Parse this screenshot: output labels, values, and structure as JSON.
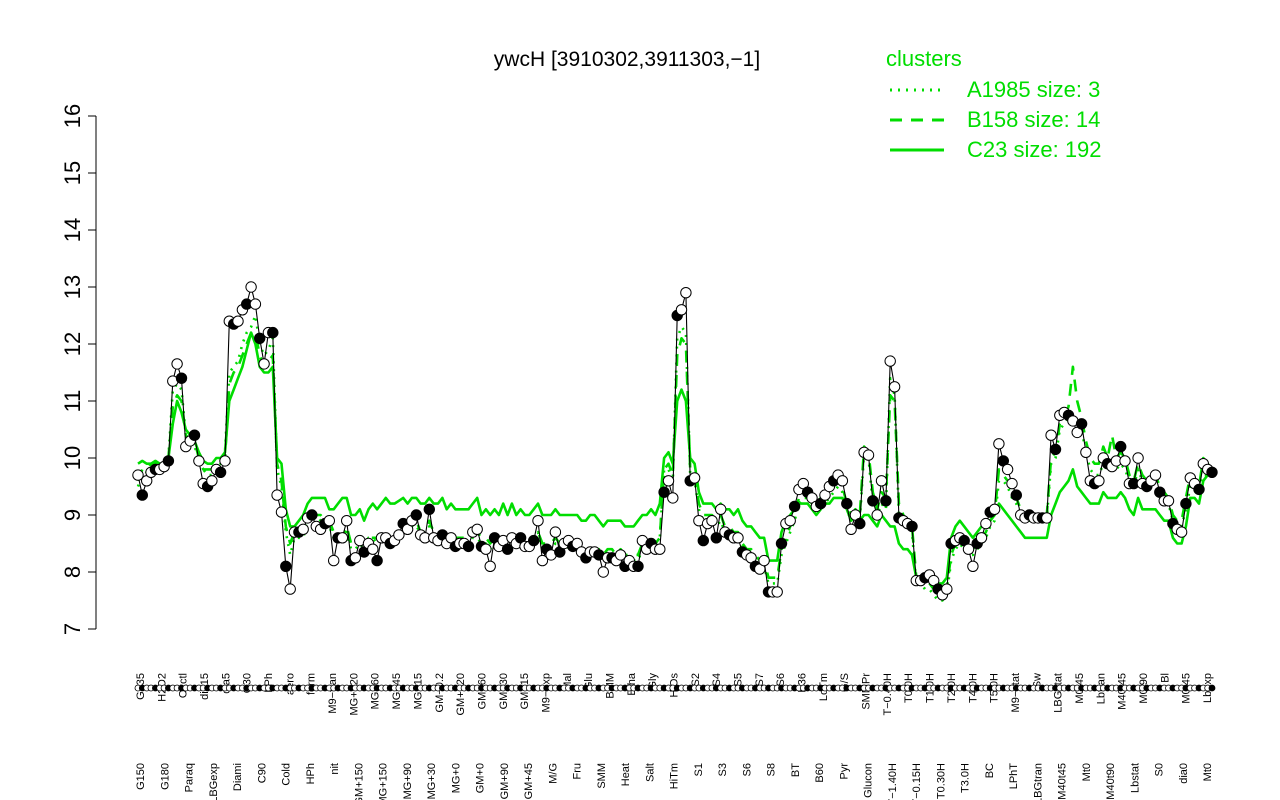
{
  "chart_data": {
    "type": "line",
    "title": "ywcH [3910302,3911303,−1]",
    "xlabel": "",
    "ylabel": "",
    "ylim": [
      7,
      16
    ],
    "yticks": [
      7,
      8,
      9,
      10,
      11,
      12,
      13,
      14,
      15,
      16
    ],
    "grid": false,
    "legend_placement": "top-right",
    "legend": {
      "title": "clusters",
      "entries": [
        {
          "label": "A1985 size: 3",
          "style": "dotted"
        },
        {
          "label": "B158 size: 14",
          "style": "dashed"
        },
        {
          "label": "C23 size: 192",
          "style": "solid"
        }
      ]
    },
    "colors": {
      "cluster_lines": "#00dd00",
      "points": "#000000",
      "text": "#000000"
    },
    "x_tick_labels_top": [
      "G135",
      "H2O2",
      "Oxctl",
      "dia15",
      "dia5",
      "C30",
      "LPh",
      "aero",
      "ferm",
      "M9−tran",
      "MG+120",
      "MG+60",
      "MG+45",
      "MG+15",
      "GM−0.2",
      "GM+120",
      "GM+60",
      "GM+30",
      "GM+15",
      "M9−exp",
      "Mal",
      "Glu",
      "BMM",
      "Etha",
      "Gly",
      "HiOs",
      "S2",
      "S4",
      "S5",
      "S7",
      "S6",
      "B36",
      "LoTm",
      "G/S",
      "SMMPr",
      "T−0.40H",
      "T0.0H",
      "T1.0H",
      "T2.0H",
      "T4.0H",
      "T5.0H",
      "M9−stat",
      "Sw",
      "LBGstat",
      "M0t45",
      "Lbtran",
      "M40t45",
      "M0t90",
      "Bl",
      "M0t45",
      "Lbexp"
    ],
    "x_tick_labels_bottom": [
      "G150",
      "G180",
      "Paraq",
      "LBGexp",
      "Diami",
      "C90",
      "Cold",
      "HPh",
      "nit",
      "GM+150",
      "MG+150",
      "MG+90",
      "MG+30",
      "MG+0",
      "GM+0",
      "GM+90",
      "GM+45",
      "M/G",
      "Fru",
      "SMM",
      "Heat",
      "Salt",
      "HiTm",
      "S1",
      "S3",
      "S6",
      "S8",
      "BT",
      "B60",
      "Pyr",
      "Glucon",
      "T−1.40H",
      "T−0.15H",
      "T0.30H",
      "T3.0H",
      "BC",
      "LPhT",
      "LBGtran",
      "M40t45",
      "Mt0",
      "M40t90",
      "Lbstat",
      "S0",
      "dia0",
      "Mt0"
    ],
    "series": [
      {
        "kind": "expression",
        "values": [
          9.7,
          9.35,
          9.6,
          9.75,
          9.8,
          9.8,
          9.85,
          9.95,
          11.35,
          11.65,
          11.4,
          10.2,
          10.3,
          10.4,
          9.95,
          9.55,
          9.5,
          9.6,
          9.8,
          9.75,
          9.95,
          12.4,
          12.35,
          12.4,
          12.6,
          12.7,
          13.0,
          12.7,
          12.1,
          11.65,
          12.2,
          12.2,
          9.35,
          9.05,
          8.1,
          7.7,
          8.7,
          8.7,
          8.75,
          8.95,
          9.0,
          8.8,
          8.75,
          8.85,
          8.9,
          8.2,
          8.6,
          8.6,
          8.9,
          8.2,
          8.25,
          8.55,
          8.35,
          8.5,
          8.4,
          8.2,
          8.6,
          8.6,
          8.5,
          8.55,
          8.65,
          8.85,
          8.75,
          8.9,
          9.0,
          8.65,
          8.6,
          9.1,
          8.6,
          8.55,
          8.65,
          8.5,
          8.6,
          8.45,
          8.5,
          8.5,
          8.45,
          8.7,
          8.75,
          8.45,
          8.4,
          8.1,
          8.6,
          8.45,
          8.55,
          8.4,
          8.6,
          8.5,
          8.6,
          8.45,
          8.45,
          8.55,
          8.9,
          8.2,
          8.4,
          8.3,
          8.7,
          8.35,
          8.5,
          8.55,
          8.45,
          8.5,
          8.35,
          8.25,
          8.35,
          8.35,
          8.3,
          8.0,
          8.25,
          8.25,
          8.2,
          8.3,
          8.1,
          8.2,
          8.1,
          8.1,
          8.55,
          8.4,
          8.5,
          8.4,
          8.4,
          9.4,
          9.6,
          9.3,
          12.5,
          12.6,
          12.9,
          9.6,
          9.65,
          8.9,
          8.55,
          8.85,
          8.9,
          8.6,
          9.1,
          8.7,
          8.65,
          8.6,
          8.6,
          8.35,
          8.3,
          8.25,
          8.1,
          8.05,
          8.2,
          7.65,
          7.65,
          7.65,
          8.5,
          8.85,
          8.9,
          9.15,
          9.45,
          9.55,
          9.4,
          9.3,
          9.15,
          9.2,
          9.35,
          9.5,
          9.6,
          9.7,
          9.6,
          9.2,
          8.75,
          9.0,
          8.85,
          10.1,
          10.05,
          9.25,
          9.0,
          9.6,
          9.25,
          11.7,
          11.25,
          8.95,
          8.9,
          8.85,
          8.8,
          7.85,
          7.85,
          7.9,
          7.95,
          7.85,
          7.7,
          7.6,
          7.7,
          8.5,
          8.55,
          8.6,
          8.55,
          8.4,
          8.1,
          8.5,
          8.6,
          8.85,
          9.05,
          9.1,
          10.25,
          9.95,
          9.8,
          9.55,
          9.35,
          9.0,
          8.95,
          9.0,
          8.95,
          8.95,
          8.95,
          8.95,
          10.4,
          10.15,
          10.75,
          10.8,
          10.75,
          10.65,
          10.45,
          10.6,
          10.1,
          9.6,
          9.55,
          9.6,
          10.0,
          9.9,
          9.85,
          9.95,
          10.2,
          9.95,
          9.55,
          9.55,
          10.0,
          9.55,
          9.5,
          9.6,
          9.7,
          9.4,
          9.25,
          9.25,
          8.85,
          8.75,
          8.7,
          9.2,
          9.65,
          9.55,
          9.45,
          9.9,
          9.8,
          9.75
        ]
      },
      {
        "name": "A1985 size: 3",
        "values": [
          9.5,
          9.7,
          9.75,
          9.8,
          9.9,
          9.85,
          9.9,
          10.0,
          11.2,
          11.3,
          11.2,
          10.4,
          10.3,
          10.2,
          10.0,
          9.8,
          9.7,
          9.7,
          9.85,
          9.9,
          10.1,
          11.5,
          11.6,
          11.7,
          12.0,
          12.2,
          12.3,
          12.5,
          12.0,
          11.8,
          11.9,
          12.1,
          9.8,
          9.5,
          8.7,
          8.3,
          8.6,
          8.6,
          8.6,
          8.9,
          9.0,
          9.0,
          8.9,
          8.8,
          8.8,
          8.6,
          8.6,
          8.5,
          8.7,
          8.4,
          8.4,
          8.5,
          8.4,
          8.6,
          8.6,
          8.5,
          8.6,
          8.6,
          8.55,
          8.6,
          8.6,
          8.7,
          8.7,
          8.8,
          8.8,
          8.7,
          8.6,
          8.8,
          8.6,
          8.55,
          8.6,
          8.5,
          8.6,
          8.5,
          8.5,
          8.5,
          8.5,
          8.6,
          8.6,
          8.5,
          8.5,
          8.4,
          8.5,
          8.5,
          8.55,
          8.5,
          8.55,
          8.5,
          8.55,
          8.5,
          8.5,
          8.5,
          8.7,
          8.4,
          8.4,
          8.4,
          8.5,
          8.4,
          8.4,
          8.45,
          8.45,
          8.4,
          8.35,
          8.3,
          8.35,
          8.35,
          8.3,
          8.2,
          8.3,
          8.3,
          8.3,
          8.3,
          8.2,
          8.2,
          8.2,
          8.2,
          8.4,
          8.4,
          8.45,
          8.5,
          8.6,
          9.8,
          9.8,
          9.6,
          12.1,
          12.3,
          12.2,
          9.7,
          9.6,
          9.1,
          8.9,
          8.9,
          8.9,
          8.8,
          8.9,
          8.7,
          8.7,
          8.6,
          8.6,
          8.4,
          8.3,
          8.3,
          8.2,
          8.1,
          8.1,
          7.8,
          7.8,
          7.8,
          8.3,
          8.5,
          8.7,
          8.9,
          9.2,
          9.3,
          9.3,
          9.2,
          9.1,
          9.2,
          9.2,
          9.3,
          9.4,
          9.5,
          9.4,
          9.1,
          8.9,
          9.0,
          8.9,
          10.1,
          10.0,
          9.2,
          9.0,
          9.2,
          9.1,
          11.4,
          11.1,
          9.0,
          8.8,
          8.8,
          8.7,
          7.8,
          7.8,
          7.7,
          7.7,
          7.6,
          7.5,
          7.5,
          7.6,
          8.2,
          8.4,
          8.5,
          8.4,
          8.3,
          8.3,
          8.4,
          8.5,
          8.6,
          8.8,
          8.9,
          9.6,
          9.6,
          9.5,
          9.3,
          9.2,
          9.0,
          8.9,
          8.9,
          8.9,
          8.9,
          8.9,
          8.95,
          9.9,
          10.0,
          10.5,
          10.6,
          10.7,
          10.8,
          10.6,
          10.5,
          10.1,
          9.8,
          9.7,
          9.7,
          9.9,
          9.8,
          9.8,
          9.8,
          9.9,
          9.8,
          9.6,
          9.5,
          9.8,
          9.6,
          9.5,
          9.5,
          9.5,
          9.4,
          9.3,
          9.2,
          8.9,
          8.8,
          8.8,
          9.1,
          9.5,
          9.5,
          9.4,
          9.7,
          9.7,
          9.7
        ]
      },
      {
        "name": "B158 size: 14",
        "values": [
          9.6,
          9.8,
          9.8,
          9.9,
          9.9,
          9.9,
          9.9,
          10.0,
          10.9,
          11.1,
          11.0,
          10.4,
          10.3,
          10.3,
          10.0,
          9.8,
          9.8,
          9.8,
          9.9,
          9.9,
          10.0,
          11.3,
          11.5,
          11.6,
          11.8,
          12.0,
          12.2,
          12.2,
          11.8,
          11.6,
          11.7,
          11.8,
          9.9,
          9.6,
          8.8,
          8.5,
          8.7,
          8.7,
          8.7,
          8.9,
          9.0,
          9.0,
          9.0,
          8.9,
          8.9,
          8.7,
          8.7,
          8.6,
          8.8,
          8.5,
          8.5,
          8.6,
          8.5,
          8.6,
          8.6,
          8.6,
          8.6,
          8.7,
          8.6,
          8.6,
          8.7,
          8.8,
          8.8,
          8.8,
          8.9,
          8.7,
          8.7,
          8.9,
          8.7,
          8.6,
          8.7,
          8.6,
          8.6,
          8.6,
          8.6,
          8.6,
          8.6,
          8.7,
          8.7,
          8.6,
          8.6,
          8.5,
          8.6,
          8.5,
          8.6,
          8.5,
          8.6,
          8.5,
          8.6,
          8.5,
          8.5,
          8.6,
          8.7,
          8.5,
          8.5,
          8.5,
          8.6,
          8.5,
          8.5,
          8.5,
          8.5,
          8.5,
          8.4,
          8.4,
          8.4,
          8.4,
          8.4,
          8.3,
          8.4,
          8.4,
          8.3,
          8.4,
          8.3,
          8.3,
          8.3,
          8.3,
          8.5,
          8.5,
          8.5,
          8.5,
          8.6,
          9.8,
          9.9,
          9.7,
          11.8,
          12.1,
          12.0,
          9.8,
          9.7,
          9.2,
          9.0,
          9.0,
          9.0,
          8.9,
          9.0,
          8.8,
          8.8,
          8.7,
          8.7,
          8.5,
          8.4,
          8.4,
          8.3,
          8.2,
          8.2,
          7.9,
          7.9,
          7.9,
          8.4,
          8.6,
          8.8,
          9.0,
          9.3,
          9.4,
          9.4,
          9.3,
          9.2,
          9.3,
          9.3,
          9.4,
          9.5,
          9.6,
          9.5,
          9.2,
          9.0,
          9.1,
          9.0,
          10.2,
          10.1,
          9.4,
          9.1,
          9.4,
          9.3,
          11.1,
          11.0,
          9.2,
          9.0,
          8.9,
          8.8,
          7.9,
          7.9,
          7.8,
          7.8,
          7.7,
          7.6,
          7.6,
          7.7,
          8.3,
          8.5,
          8.5,
          8.5,
          8.4,
          8.4,
          8.5,
          8.6,
          8.7,
          8.9,
          9.0,
          9.8,
          9.7,
          9.6,
          9.4,
          9.3,
          9.1,
          9.0,
          9.0,
          9.0,
          9.0,
          9.0,
          9.0,
          10.0,
          10.1,
          10.6,
          10.7,
          10.9,
          11.6,
          11.0,
          10.7,
          10.3,
          10.0,
          9.9,
          9.9,
          10.2,
          10.0,
          10.4,
          10.0,
          10.1,
          10.0,
          9.7,
          9.6,
          9.9,
          9.7,
          9.6,
          9.6,
          9.7,
          9.5,
          9.4,
          9.3,
          9.0,
          8.9,
          8.9,
          9.3,
          9.7,
          9.6,
          9.5,
          10.0,
          9.9,
          9.8
        ]
      },
      {
        "name": "C23 size: 192",
        "values": [
          9.9,
          9.95,
          9.9,
          9.9,
          9.95,
          9.9,
          9.9,
          10.0,
          10.6,
          11.0,
          10.8,
          10.5,
          10.4,
          10.3,
          10.1,
          9.95,
          9.9,
          9.9,
          10.0,
          10.0,
          10.1,
          11.0,
          11.2,
          11.4,
          11.6,
          11.9,
          12.2,
          12.0,
          11.6,
          11.5,
          11.5,
          11.6,
          10.0,
          9.9,
          9.1,
          8.8,
          8.8,
          8.9,
          9.0,
          9.2,
          9.3,
          9.3,
          9.3,
          9.3,
          9.1,
          9.1,
          9.2,
          9.3,
          9.3,
          9.0,
          9.0,
          9.1,
          8.9,
          9.1,
          9.2,
          9.1,
          9.2,
          9.3,
          9.2,
          9.2,
          9.25,
          9.3,
          9.2,
          9.3,
          9.3,
          9.2,
          9.2,
          9.3,
          9.2,
          9.2,
          9.3,
          9.1,
          9.2,
          9.1,
          9.1,
          9.1,
          9.1,
          9.2,
          9.3,
          9.0,
          9.1,
          9.0,
          9.1,
          9.0,
          9.2,
          9.0,
          9.2,
          9.0,
          9.1,
          9.0,
          9.0,
          9.1,
          9.2,
          9.0,
          9.0,
          9.0,
          9.1,
          9.0,
          9.0,
          9.0,
          9.0,
          9.0,
          8.9,
          8.9,
          9.0,
          9.0,
          8.9,
          8.8,
          8.9,
          8.9,
          8.9,
          8.9,
          8.8,
          8.8,
          8.8,
          8.9,
          9.0,
          9.0,
          9.1,
          9.0,
          9.2,
          10.0,
          10.1,
          9.9,
          11.0,
          11.2,
          11.0,
          10.0,
          9.9,
          9.4,
          9.2,
          9.2,
          9.2,
          9.1,
          9.2,
          9.1,
          9.1,
          9.0,
          9.1,
          8.9,
          8.8,
          8.8,
          8.7,
          8.6,
          8.6,
          8.2,
          8.2,
          8.2,
          8.7,
          8.9,
          9.0,
          9.1,
          9.2,
          9.2,
          9.2,
          9.1,
          9.0,
          9.1,
          9.2,
          9.2,
          9.3,
          9.3,
          9.3,
          9.1,
          8.9,
          9.0,
          8.9,
          9.0,
          9.0,
          8.9,
          8.8,
          9.0,
          8.9,
          8.8,
          8.8,
          8.5,
          8.4,
          8.4,
          8.3,
          7.9,
          7.9,
          7.9,
          7.9,
          7.8,
          7.8,
          7.8,
          7.9,
          8.6,
          8.8,
          8.9,
          8.8,
          8.7,
          8.6,
          8.7,
          8.8,
          8.9,
          8.9,
          9.0,
          9.2,
          9.1,
          9.0,
          8.9,
          8.8,
          8.7,
          8.6,
          8.6,
          8.6,
          8.6,
          8.6,
          8.6,
          9.0,
          9.2,
          9.4,
          9.5,
          9.6,
          9.8,
          9.5,
          9.4,
          9.3,
          9.2,
          9.2,
          9.2,
          9.4,
          9.3,
          9.3,
          9.3,
          9.4,
          9.3,
          9.1,
          9.0,
          9.3,
          9.1,
          9.1,
          9.1,
          9.1,
          9.0,
          8.9,
          8.9,
          8.6,
          8.5,
          8.5,
          8.8,
          9.3,
          9.3,
          9.2,
          9.6,
          9.7,
          9.8
        ]
      }
    ]
  }
}
